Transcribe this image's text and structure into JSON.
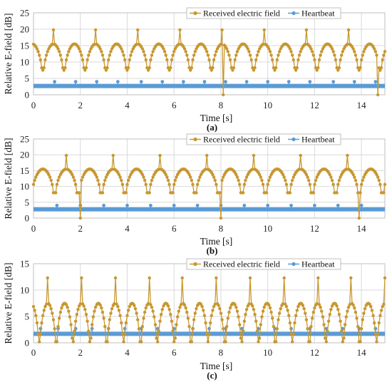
{
  "chart_data": [
    {
      "type": "line",
      "panel_label": "(a)",
      "xlabel": "Time [s]",
      "ylabel": "Relative E-field [dB]",
      "xlim": [
        0,
        15
      ],
      "ylim": [
        0,
        25
      ],
      "xticks": [
        0,
        2,
        4,
        6,
        8,
        10,
        12,
        14
      ],
      "yticks": [
        0,
        5,
        10,
        15,
        20,
        25
      ],
      "grid": true,
      "legend_position": "top-right",
      "series": [
        {
          "name": "Received electric field",
          "color": "#c8972f",
          "model": {
            "period_s": 0.9,
            "phase_s": 0.4,
            "baseline_db": 15.5,
            "peak_db": 19.8,
            "null_db": 7.5,
            "deep_nulls_s": [
              8.1,
              14.7
            ],
            "deep_null_db": 0,
            "sample_step_s": 0.05
          }
        },
        {
          "name": "Heartbeat",
          "color": "#5b9bd5",
          "baseline_db": 2.7,
          "pulse_db": 4.0,
          "pulse_times_s": [
            0.9,
            1.8,
            2.7,
            3.6,
            4.6,
            5.5,
            6.4,
            7.3,
            8.2,
            9.1,
            10.0,
            10.9,
            11.8,
            12.8,
            13.7,
            14.6
          ]
        }
      ]
    },
    {
      "type": "line",
      "panel_label": "(b)",
      "xlabel": "Time [s]",
      "ylabel": "Relative E-field [dB]",
      "xlim": [
        0,
        15
      ],
      "ylim": [
        0,
        25
      ],
      "xticks": [
        0,
        2,
        4,
        6,
        8,
        10,
        12,
        14
      ],
      "yticks": [
        0,
        5,
        10,
        15,
        20,
        25
      ],
      "grid": true,
      "legend_position": "top-right",
      "series": [
        {
          "name": "Received electric field",
          "color": "#c8972f",
          "model": {
            "period_s": 1.0,
            "phase_s": 0.9,
            "baseline_db": 15.5,
            "peak_db": 19.8,
            "null_db": 8.0,
            "deep_nulls_s": [
              2.0,
              8.0,
              13.9
            ],
            "deep_null_db": 0,
            "sample_step_s": 0.05
          }
        },
        {
          "name": "Heartbeat",
          "color": "#5b9bd5",
          "baseline_db": 2.8,
          "pulse_db": 4.0,
          "pulse_times_s": [
            1.0,
            2.0,
            3.0,
            4.0,
            5.0,
            6.0,
            7.0,
            8.0,
            9.0,
            10.0,
            11.0,
            12.0,
            13.0,
            14.0
          ]
        }
      ]
    },
    {
      "type": "line",
      "panel_label": "(c)",
      "xlabel": "Time [s]",
      "ylabel": "Relative E-field [dB]",
      "xlim": [
        0,
        15
      ],
      "ylim": [
        0,
        15
      ],
      "xticks": [
        0,
        2,
        4,
        6,
        8,
        10,
        12,
        14
      ],
      "yticks": [
        0,
        5,
        10,
        15
      ],
      "grid": true,
      "legend_position": "top-right",
      "series": [
        {
          "name": "Received electric field",
          "color": "#c8972f",
          "model": {
            "period_s": 0.72,
            "phase_s": 0.25,
            "baseline_db": 7.5,
            "peak_db": 12.3,
            "null_db": 0.2,
            "deep_nulls_s": [],
            "deep_null_db": 0,
            "sample_step_s": 0.05
          }
        },
        {
          "name": "Heartbeat",
          "color": "#5b9bd5",
          "baseline_db": 1.7,
          "pulse_db": 2.7,
          "pulse_times_s": [
            0.3,
            1.05,
            1.8,
            2.5,
            3.2,
            3.9,
            4.6,
            5.3,
            6.0,
            6.8,
            7.5,
            8.2,
            8.9,
            9.6,
            10.3,
            11.0,
            11.8,
            12.5,
            13.2,
            13.9,
            14.6
          ]
        }
      ]
    }
  ]
}
